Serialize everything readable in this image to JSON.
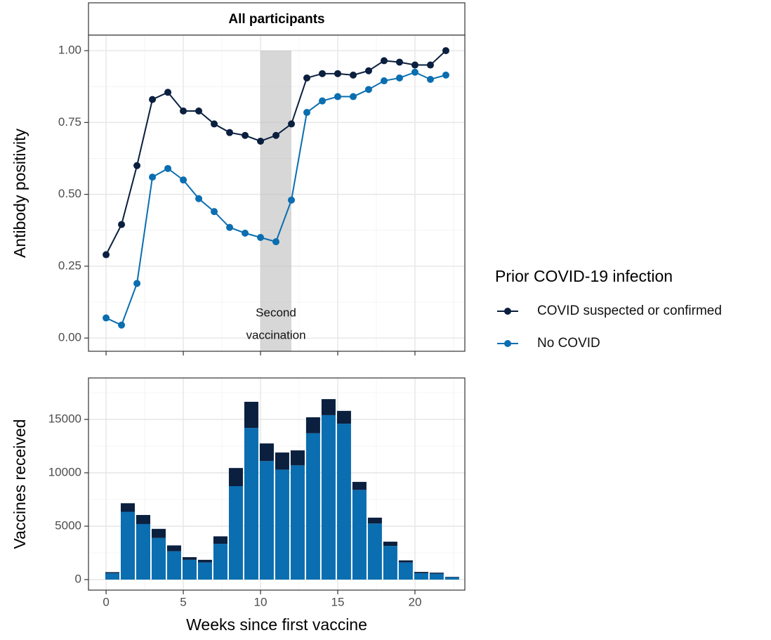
{
  "chart_data": [
    {
      "type": "line",
      "strip": "All participants",
      "ylabel": "Antibody positivity",
      "legend_title": "Prior COVID-19 infection",
      "legend": "right",
      "x": [
        0,
        1,
        2,
        3,
        4,
        5,
        6,
        7,
        8,
        9,
        10,
        11,
        12,
        13,
        14,
        15,
        16,
        17,
        18,
        19,
        20,
        21,
        22
      ],
      "xlim": [
        -1.14,
        23.23
      ],
      "xticks": [
        0,
        5,
        10,
        15,
        20
      ],
      "xminor": [
        2.5,
        7.5,
        12.5,
        17.5,
        22.5
      ],
      "ylim": [
        -0.046,
        1.054
      ],
      "yticks": [
        {
          "value": 0,
          "label": "0.00"
        },
        0.25,
        {
          "value": 0.5,
          "label": "0.50"
        },
        0.75,
        {
          "value": 1,
          "label": "1.00"
        }
      ],
      "yminor": [
        0.125,
        0.375,
        0.625,
        0.875
      ],
      "grid": true,
      "shade": [
        10,
        12
      ],
      "annotation": [
        "Second",
        "vaccination"
      ],
      "series": [
        {
          "name": "COVID suspected or confirmed",
          "color": "#0b1f3f",
          "values": [
            0.29,
            0.395,
            0.6,
            0.83,
            0.855,
            0.79,
            0.79,
            0.745,
            0.715,
            0.705,
            0.685,
            0.705,
            0.745,
            0.905,
            0.92,
            0.92,
            0.915,
            0.93,
            0.965,
            0.96,
            0.95,
            0.95,
            1.0
          ]
        },
        {
          "name": "No COVID",
          "color": "#0a6eb0",
          "values": [
            0.07,
            0.045,
            0.19,
            0.56,
            0.59,
            0.55,
            0.485,
            0.44,
            0.385,
            0.365,
            0.35,
            0.335,
            0.48,
            0.785,
            0.825,
            0.84,
            0.84,
            0.865,
            0.895,
            0.905,
            0.925,
            0.9,
            0.915
          ]
        }
      ]
    },
    {
      "type": "bar",
      "stacked": true,
      "ylabel": "Vaccines received",
      "xlabel": "Weeks since first vaccine",
      "x": [
        0,
        1,
        2,
        3,
        4,
        5,
        6,
        7,
        8,
        9,
        10,
        11,
        12,
        13,
        14,
        15,
        16,
        17,
        18,
        19,
        20,
        21,
        22
      ],
      "xlim": [
        -1.14,
        23.23
      ],
      "xticks": [
        0,
        5,
        10,
        15,
        20
      ],
      "xminor": [
        2.5,
        7.5,
        12.5,
        17.5,
        22.5
      ],
      "ylim": [
        -987,
        18882
      ],
      "yticks": [
        0,
        5000,
        10000,
        15000
      ],
      "yminor": [
        2500,
        7500,
        12500,
        17500
      ],
      "grid": true,
      "series": [
        {
          "name": "No COVID",
          "color": "#0a6eb0",
          "values": [
            600,
            6350,
            5200,
            3900,
            2650,
            1850,
            1600,
            3350,
            8750,
            14200,
            11100,
            10300,
            10700,
            13700,
            15400,
            14600,
            8400,
            5250,
            3150,
            1600,
            600,
            550,
            220
          ]
        },
        {
          "name": "COVID suspected or confirmed",
          "color": "#0b1f3f",
          "values": [
            100,
            800,
            850,
            850,
            550,
            250,
            250,
            700,
            1700,
            2450,
            1650,
            1600,
            1400,
            1500,
            1500,
            1200,
            750,
            550,
            400,
            200,
            120,
            100,
            40
          ]
        }
      ]
    }
  ]
}
